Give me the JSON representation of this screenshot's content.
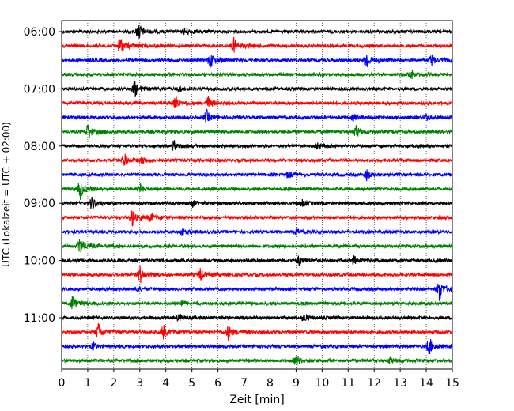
{
  "chart_data": {
    "type": "line",
    "title": "",
    "xlabel": "Zeit  [min]",
    "ylabel": "UTC (Lokalzeit = UTC + 02:00)",
    "xlim": [
      0,
      15
    ],
    "x_ticks": [
      0,
      1,
      2,
      3,
      4,
      5,
      6,
      7,
      8,
      9,
      10,
      11,
      12,
      13,
      14,
      15
    ],
    "y_tick_labels": [
      "06:00",
      "07:00",
      "08:00",
      "09:00",
      "10:00",
      "11:00"
    ],
    "grid": "vertical dotted at each minute",
    "trace_colors": [
      "#000000",
      "#ff0000",
      "#0000ff",
      "#008000"
    ],
    "traces": [
      {
        "start": "06:00",
        "events": [
          [
            2.95,
            1.0
          ],
          [
            4.75,
            0.5
          ]
        ]
      },
      {
        "start": "06:15",
        "events": [
          [
            2.25,
            1.1
          ],
          [
            6.6,
            0.9
          ]
        ]
      },
      {
        "start": "06:30",
        "events": [
          [
            5.7,
            0.9
          ],
          [
            11.7,
            1.1
          ],
          [
            14.2,
            0.7
          ]
        ]
      },
      {
        "start": "06:45",
        "events": [
          [
            13.4,
            0.6
          ]
        ]
      },
      {
        "start": "07:00",
        "events": [
          [
            2.8,
            0.9
          ],
          [
            4.5,
            0.3
          ]
        ]
      },
      {
        "start": "07:15",
        "events": [
          [
            4.35,
            1.0
          ],
          [
            5.6,
            0.8
          ]
        ]
      },
      {
        "start": "07:30",
        "events": [
          [
            5.55,
            0.8
          ],
          [
            11.2,
            0.4
          ],
          [
            14.0,
            0.5
          ]
        ]
      },
      {
        "start": "07:45",
        "events": [
          [
            1.0,
            1.0
          ],
          [
            11.3,
            0.7
          ]
        ]
      },
      {
        "start": "08:00",
        "events": [
          [
            4.3,
            0.6
          ],
          [
            9.8,
            0.4
          ]
        ]
      },
      {
        "start": "08:15",
        "events": [
          [
            2.4,
            0.9
          ],
          [
            3.1,
            0.4
          ]
        ]
      },
      {
        "start": "08:30",
        "events": [
          [
            8.7,
            0.4
          ],
          [
            11.7,
            0.6
          ]
        ]
      },
      {
        "start": "08:45",
        "events": [
          [
            0.7,
            1.2
          ],
          [
            3.0,
            0.5
          ]
        ]
      },
      {
        "start": "09:00",
        "events": [
          [
            1.15,
            0.8
          ],
          [
            5.0,
            0.4
          ],
          [
            9.2,
            0.4
          ]
        ]
      },
      {
        "start": "09:15",
        "events": [
          [
            2.7,
            1.0
          ],
          [
            3.4,
            0.5
          ]
        ]
      },
      {
        "start": "09:30",
        "events": [
          [
            4.6,
            0.4
          ],
          [
            9.0,
            0.4
          ]
        ]
      },
      {
        "start": "09:45",
        "events": [
          [
            0.7,
            1.1
          ]
        ]
      },
      {
        "start": "10:00",
        "events": [
          [
            9.1,
            0.6
          ],
          [
            11.2,
            0.5
          ]
        ]
      },
      {
        "start": "10:15",
        "events": [
          [
            3.0,
            1.0
          ],
          [
            5.3,
            0.8
          ]
        ]
      },
      {
        "start": "10:30",
        "events": [
          [
            14.5,
            1.3
          ],
          [
            2.9,
            0.3
          ]
        ]
      },
      {
        "start": "10:45",
        "events": [
          [
            0.4,
            0.9
          ],
          [
            4.6,
            0.4
          ]
        ]
      },
      {
        "start": "11:00",
        "events": [
          [
            4.5,
            0.4
          ],
          [
            9.3,
            0.5
          ]
        ]
      },
      {
        "start": "11:15",
        "events": [
          [
            1.4,
            1.0
          ],
          [
            3.9,
            0.9
          ],
          [
            6.4,
            0.9
          ]
        ]
      },
      {
        "start": "11:30",
        "events": [
          [
            14.1,
            1.1
          ],
          [
            1.2,
            0.4
          ]
        ]
      },
      {
        "start": "11:45",
        "events": [
          [
            9.0,
            0.7
          ],
          [
            12.6,
            0.4
          ]
        ]
      }
    ]
  }
}
